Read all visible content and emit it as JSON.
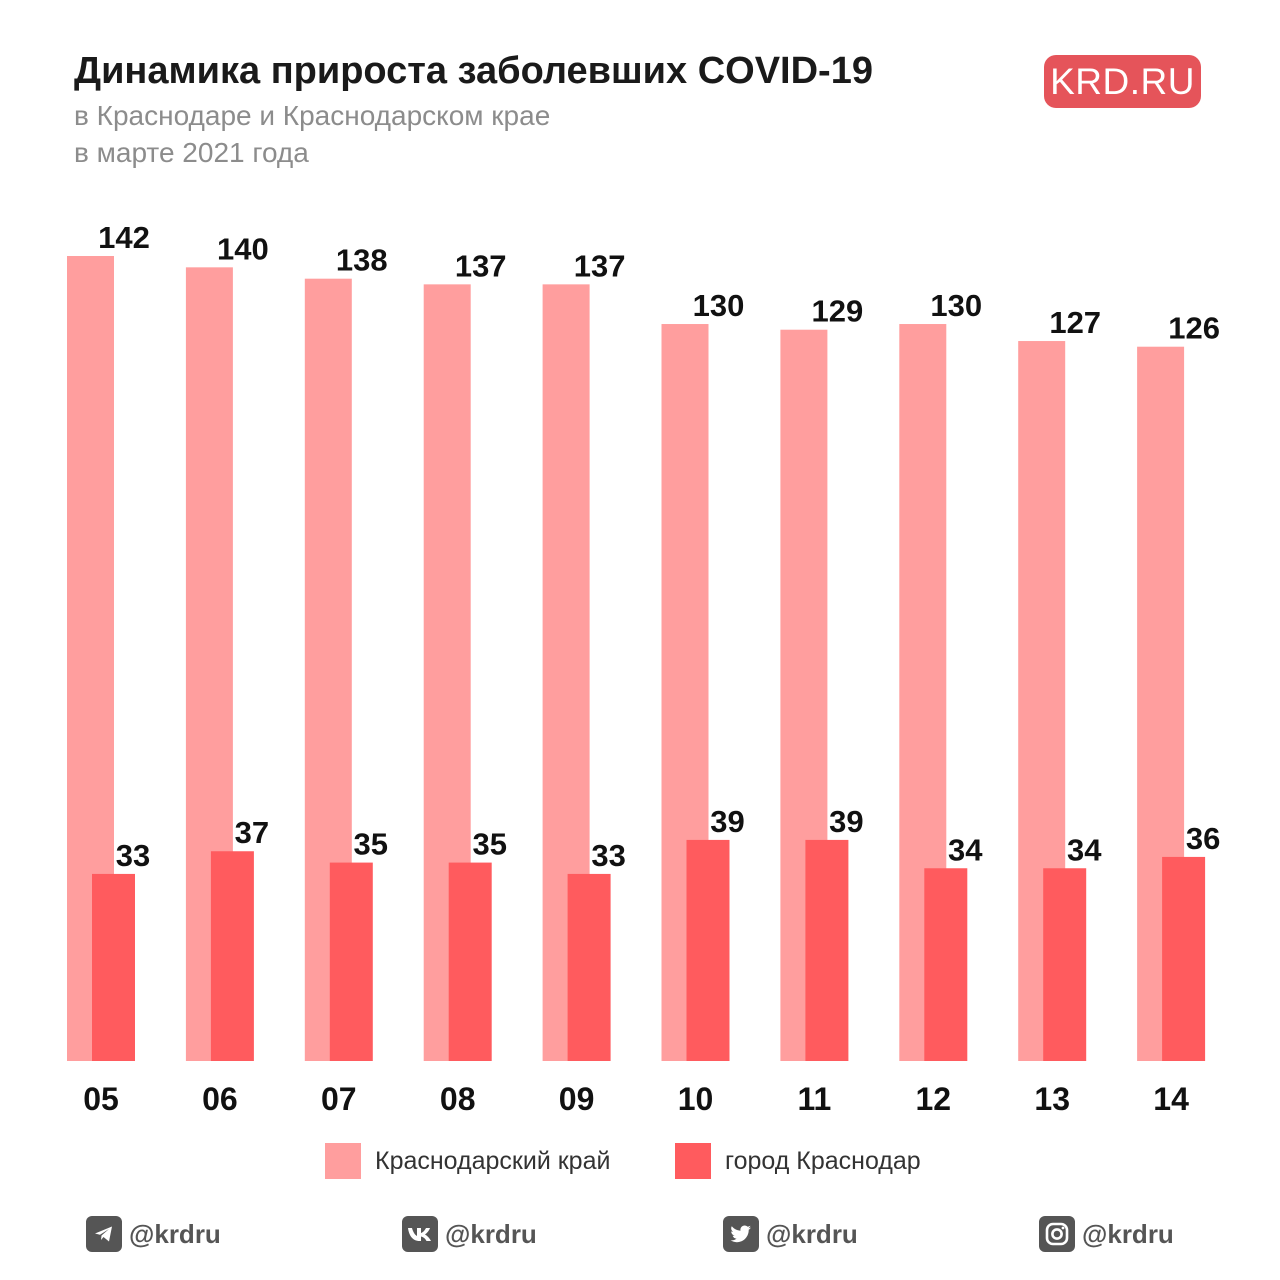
{
  "header": {
    "title": "Динамика прироста заболевших COVID-19",
    "subtitle_line1": "в Краснодаре и Краснодарском крае",
    "subtitle_line2": "в марте 2021 года",
    "logo_text": "KRD.RU"
  },
  "colors": {
    "region": "#ff9e9e",
    "city": "#ff5b5e",
    "logo_bg": "#e5545a",
    "text": "#111111"
  },
  "chart_data": {
    "type": "bar",
    "title": "Динамика прироста заболевших COVID-19",
    "subtitle": "в Краснодаре и Краснодарском крае в марте 2021 года",
    "categories": [
      "05",
      "06",
      "07",
      "08",
      "09",
      "10",
      "11",
      "12",
      "13",
      "14"
    ],
    "series": [
      {
        "name": "Краснодарский край",
        "values": [
          142,
          140,
          138,
          137,
          137,
          130,
          129,
          130,
          127,
          126
        ]
      },
      {
        "name": "город Краснодар",
        "values": [
          33,
          37,
          35,
          35,
          33,
          39,
          39,
          34,
          34,
          36
        ]
      }
    ],
    "ylim": [
      0,
      142
    ],
    "grid": false,
    "legend": "bottom",
    "xlabel": "",
    "ylabel": ""
  },
  "legend": {
    "region_label": "Краснодарский край",
    "city_label": "город Краснодар"
  },
  "socials": [
    {
      "icon": "telegram-icon",
      "handle": "@krdru"
    },
    {
      "icon": "vk-icon",
      "handle": "@krdru"
    },
    {
      "icon": "twitter-icon",
      "handle": "@krdru"
    },
    {
      "icon": "instagram-icon",
      "handle": "@krdru"
    }
  ]
}
